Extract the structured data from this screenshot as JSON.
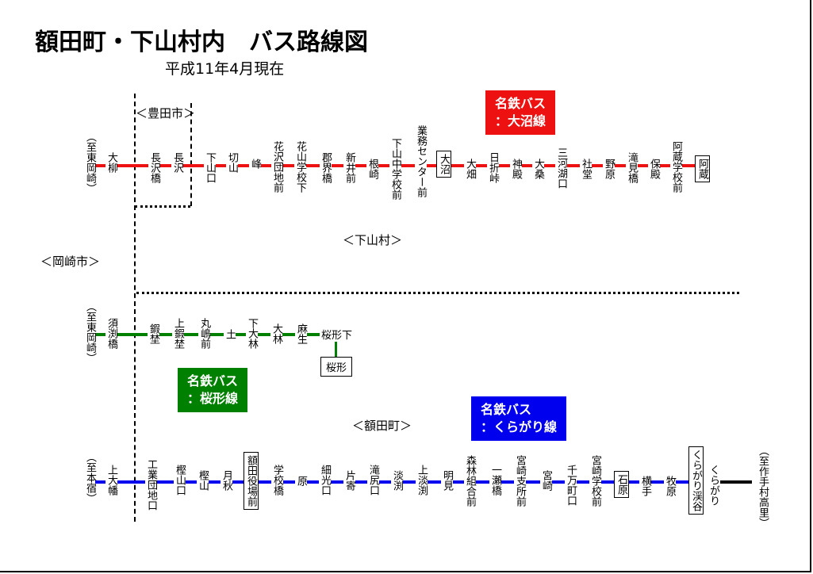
{
  "title": "額田町・下山村内　バス路線図",
  "subtitle": "平成11年4月現在",
  "regions": {
    "toyota": "＜豊田市＞",
    "shimoyama": "＜下山村＞",
    "okazaki": "＜岡崎市＞",
    "nukata": "＜額田町＞"
  },
  "colors": {
    "onuma": "#ee1111",
    "sakuragata": "#008000",
    "kuragari": "#0000ee",
    "terminal": "#000000"
  },
  "routes": {
    "onuma": {
      "badge_line1": "名鉄バス",
      "badge_line2": "：大沼線",
      "dest_left": "（至東岡崎）",
      "stops": [
        "大柳",
        "長沢橋",
        "長沢",
        "下山口",
        "切山",
        "峰",
        "花沢団地前",
        "花山学校下",
        "郡界橋",
        "新井前",
        "根崎",
        "下山中学校前",
        "業務センター前",
        "大沼",
        "大畑",
        "日折峠",
        "神殿",
        "大桑",
        "三河湖口",
        "社堂",
        "野原",
        "滝見橋",
        "保殿",
        "阿蔵学校前",
        "阿蔵"
      ]
    },
    "sakuragata": {
      "badge_line1": "名鉄バス",
      "badge_line2": "：桜形線",
      "dest_left": "（至東岡崎）",
      "stops": [
        "須渕橋",
        "鍜埜",
        "上鍜埜",
        "丸嶋前",
        "土",
        "下大林",
        "大林",
        "麻生"
      ],
      "junction": "桜形下",
      "branch_end": "桜形"
    },
    "kuragari": {
      "badge_line1": "名鉄バス",
      "badge_line2": "：くらがり線",
      "dest_left": "（至本宿）",
      "dest_right": "（至作手村高里）",
      "stops": [
        "上大幡",
        "工業団地口",
        "樫山口",
        "樫山",
        "月秋",
        "額田役場前",
        "学校橋",
        "原",
        "細光口",
        "片寄",
        "滝尻口",
        "淡渕",
        "上淡渕",
        "明見",
        "森林組合前",
        "一瀬橋",
        "宮崎支所前",
        "宮崎",
        "千万町口",
        "宮崎学校前",
        "石原",
        "横手",
        "牧原",
        "くらがり渓谷",
        "くらがり"
      ]
    }
  }
}
